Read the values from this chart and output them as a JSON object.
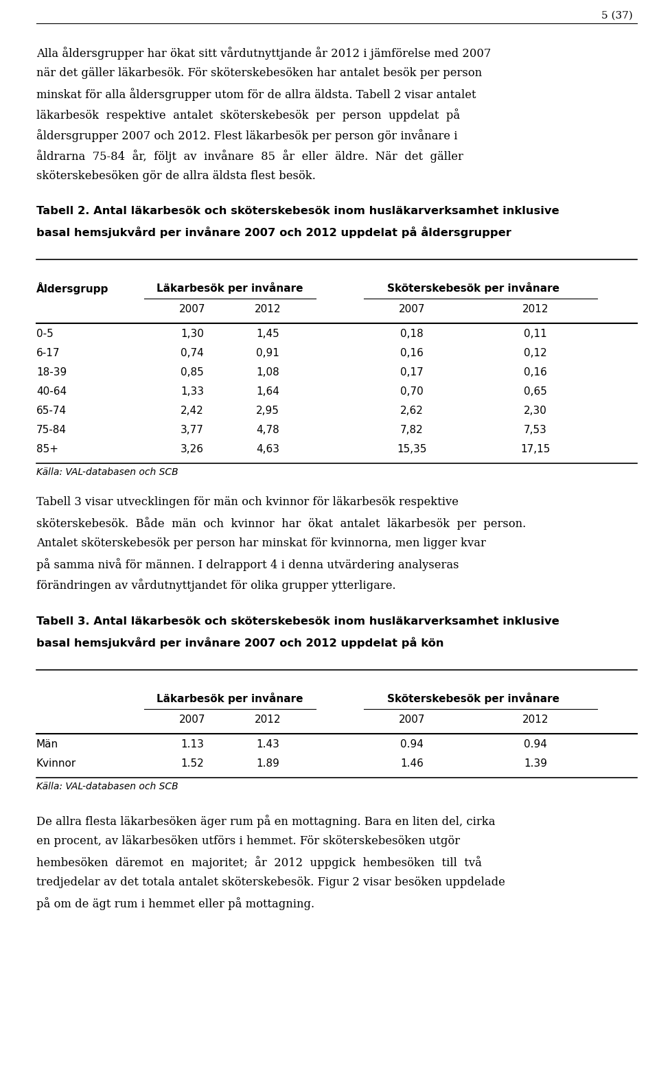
{
  "page_number": "5 (37)",
  "paragraph1_lines": [
    "Alla åldersgrupper har ökat sitt vårdutnyttjande år 2012 i jämförelse med 2007",
    "när det gäller läkarbesök. För sköterskebesöken har antalet besök per person",
    "minskat för alla åldersgrupper utom för de allra äldsta. Tabell 2 visar antalet",
    "läkarbesök  respektive  antalet  sköterskebesök  per  person  uppdelat  på",
    "åldersgrupper 2007 och 2012. Flest läkarbesök per person gör invånare i",
    "åldrarna  75-84  år,  följt  av  invånare  85  år  eller  äldre.  När  det  gäller",
    "sköterskebesöken gör de allra äldsta flest besök."
  ],
  "table2_title_lines": [
    "Tabell 2. Antal läkarbesök och sköterskebesök inom husläkarverksamhet inklusive",
    "basal hemsjukvård per invånare 2007 och 2012 uppdelat på åldersgrupper"
  ],
  "table2_rows": [
    [
      "0-5",
      "1,30",
      "1,45",
      "0,18",
      "0,11"
    ],
    [
      "6-17",
      "0,74",
      "0,91",
      "0,16",
      "0,12"
    ],
    [
      "18-39",
      "0,85",
      "1,08",
      "0,17",
      "0,16"
    ],
    [
      "40-64",
      "1,33",
      "1,64",
      "0,70",
      "0,65"
    ],
    [
      "65-74",
      "2,42",
      "2,95",
      "2,62",
      "2,30"
    ],
    [
      "75-84",
      "3,77",
      "4,78",
      "7,82",
      "7,53"
    ],
    [
      "85+",
      "3,26",
      "4,63",
      "15,35",
      "17,15"
    ]
  ],
  "table2_source": "Källa: VAL-databasen och SCB",
  "paragraph2_lines": [
    "Tabell 3 visar utvecklingen för män och kvinnor för läkarbesök respektive",
    "sköterskebesök.  Både  män  och  kvinnor  har  ökat  antalet  läkarbesök  per  person.",
    "Antalet sköterskebesök per person har minskat för kvinnorna, men ligger kvar",
    "på samma nivå för männen. I delrapport 4 i denna utvärdering analyseras",
    "förändringen av vårdutnyttjandet för olika grupper ytterligare."
  ],
  "table3_title_lines": [
    "Tabell 3. Antal läkarbesök och sköterskebesök inom husläkarverksamhet inklusive",
    "basal hemsjukvård per invånare 2007 och 2012 uppdelat på kön"
  ],
  "table3_rows": [
    [
      "Män",
      "1.13",
      "1.43",
      "0.94",
      "0.94"
    ],
    [
      "Kvinnor",
      "1.52",
      "1.89",
      "1.46",
      "1.39"
    ]
  ],
  "table3_source": "Källa: VAL-databasen och SCB",
  "paragraph3_lines": [
    "De allra flesta läkarbesöken äger rum på en mottagning. Bara en liten del, cirka",
    "en procent, av läkarbesöken utförs i hemmet. För sköterskebesöken utgör",
    "hembesöken  däremot  en  majoritet;  år  2012  uppgick  hembesöken  till  två",
    "tredjedelar av det totala antalet sköterskebesök. Figur 2 visar besöken uppdelade",
    "på om de ägt rum i hemmet eller på mottagning."
  ],
  "bg_color": "#ffffff"
}
